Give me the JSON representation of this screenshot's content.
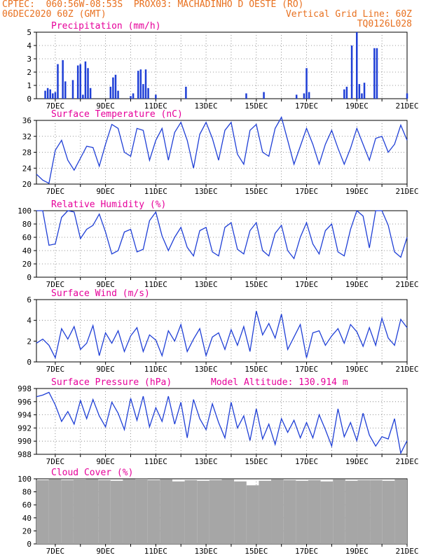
{
  "header": {
    "line1_left": "CPTEC:  060:56W-08:53S  PROX03: MACHADINHO D OESTE (RO)",
    "line2_left": "06DEC2020 60Z (GMT)",
    "line2_right": "Vertical Grid Line: 60Z",
    "line3_right": "TQ0126L028"
  },
  "colors": {
    "header": "#e8701f",
    "panel_title": "#e6009a",
    "series": "#1f3fd6",
    "cloud": "#a6a6a6"
  },
  "x_ticks": [
    "7DEC",
    "9DEC",
    "11DEC",
    "13DEC",
    "15DEC",
    "17DEC",
    "19DEC",
    "21DEC"
  ],
  "chart_data": [
    {
      "type": "bar",
      "title": "Precipitation (mm/h)",
      "ylim": [
        0,
        5
      ],
      "yticks": [
        "0",
        "1",
        "2",
        "3",
        "4",
        "5"
      ],
      "x_ticks": [
        "7DEC",
        "9DEC",
        "11DEC",
        "13DEC",
        "15DEC",
        "17DEC",
        "19DEC",
        "21DEC"
      ],
      "x": [
        6.6,
        6.7,
        6.8,
        6.9,
        7.0,
        7.1,
        7.3,
        7.4,
        7.7,
        7.9,
        8.0,
        8.1,
        8.2,
        8.3,
        8.4,
        9.2,
        9.3,
        9.4,
        9.5,
        10.0,
        10.1,
        10.3,
        10.4,
        10.5,
        10.6,
        10.7,
        11.0,
        12.2,
        14.6,
        15.3,
        16.6,
        16.9,
        17.0,
        17.1,
        18.5,
        18.6,
        18.8,
        19.0,
        19.1,
        19.2,
        19.3,
        19.7,
        19.8,
        21.0
      ],
      "values": [
        0.6,
        0.8,
        0.7,
        0.4,
        0.5,
        2.6,
        2.9,
        1.3,
        1.4,
        2.5,
        2.6,
        0.3,
        2.8,
        2.3,
        0.8,
        0.9,
        1.6,
        1.8,
        0.6,
        0.2,
        0.4,
        2.1,
        2.2,
        1.1,
        2.2,
        0.8,
        0.3,
        0.9,
        0.4,
        0.5,
        0.3,
        0.4,
        2.3,
        0.5,
        0.7,
        0.9,
        4.0,
        5.0,
        1.1,
        0.4,
        1.2,
        3.8,
        3.8,
        0.4
      ]
    },
    {
      "type": "line",
      "title": "Surface Temperature (nC)",
      "ylim": [
        20,
        36
      ],
      "yticks": [
        "20",
        "24",
        "28",
        "32",
        "36"
      ],
      "x_ticks": [
        "7DEC",
        "9DEC",
        "11DEC",
        "13DEC",
        "15DEC",
        "17DEC",
        "19DEC",
        "21DEC"
      ],
      "x": [
        6.25,
        6.5,
        6.75,
        7.0,
        7.25,
        7.5,
        7.75,
        8.0,
        8.25,
        8.5,
        8.75,
        9.0,
        9.25,
        9.5,
        9.75,
        10.0,
        10.25,
        10.5,
        10.75,
        11.0,
        11.25,
        11.5,
        11.75,
        12.0,
        12.25,
        12.5,
        12.75,
        13.0,
        13.25,
        13.5,
        13.75,
        14.0,
        14.25,
        14.5,
        14.75,
        15.0,
        15.25,
        15.5,
        15.75,
        16.0,
        16.25,
        16.5,
        16.75,
        17.0,
        17.25,
        17.5,
        17.75,
        18.0,
        18.25,
        18.5,
        18.75,
        19.0,
        19.25,
        19.5,
        19.75,
        20.0,
        20.25,
        20.5,
        20.75,
        21.0
      ],
      "values": [
        22.5,
        21.0,
        20.2,
        28.5,
        31.0,
        26.0,
        23.5,
        26.5,
        29.5,
        29.2,
        24.5,
        30.0,
        35.0,
        34.0,
        28.0,
        27.0,
        34.0,
        33.5,
        26.0,
        31.0,
        34.0,
        26.0,
        33.0,
        35.5,
        31.0,
        24.0,
        32.5,
        35.5,
        31.5,
        26.0,
        33.5,
        35.5,
        27.5,
        25.0,
        33.5,
        35.0,
        28.0,
        27.0,
        34.0,
        36.8,
        31.0,
        25.0,
        29.5,
        34.0,
        30.0,
        25.0,
        30.0,
        33.5,
        29.0,
        25.0,
        29.0,
        34.0,
        30.0,
        26.0,
        31.5,
        32.0,
        28.0,
        30.0,
        34.8,
        31.0
      ]
    },
    {
      "type": "line",
      "title": "Relative Humidity (%)",
      "ylim": [
        0,
        100
      ],
      "yticks": [
        "0",
        "20",
        "40",
        "60",
        "80",
        "100"
      ],
      "x_ticks": [
        "7DEC",
        "9DEC",
        "11DEC",
        "13DEC",
        "15DEC",
        "17DEC",
        "19DEC",
        "21DEC"
      ],
      "x": [
        6.25,
        6.5,
        6.75,
        7.0,
        7.25,
        7.5,
        7.75,
        8.0,
        8.25,
        8.5,
        8.75,
        9.0,
        9.25,
        9.5,
        9.75,
        10.0,
        10.25,
        10.5,
        10.75,
        11.0,
        11.25,
        11.5,
        11.75,
        12.0,
        12.25,
        12.5,
        12.75,
        13.0,
        13.25,
        13.5,
        13.75,
        14.0,
        14.25,
        14.5,
        14.75,
        15.0,
        15.25,
        15.5,
        15.75,
        16.0,
        16.25,
        16.5,
        16.75,
        17.0,
        17.25,
        17.5,
        17.75,
        18.0,
        18.25,
        18.5,
        18.75,
        19.0,
        19.25,
        19.5,
        19.75,
        20.0,
        20.25,
        20.5,
        20.75,
        21.0
      ],
      "values": [
        100,
        100,
        48,
        50,
        90,
        100,
        98,
        58,
        72,
        78,
        95,
        68,
        35,
        40,
        68,
        72,
        38,
        42,
        85,
        98,
        62,
        40,
        60,
        75,
        45,
        32,
        70,
        75,
        38,
        32,
        75,
        82,
        42,
        35,
        70,
        82,
        40,
        32,
        66,
        78,
        40,
        28,
        60,
        82,
        50,
        35,
        70,
        80,
        38,
        32,
        72,
        100,
        92,
        44,
        100,
        100,
        78,
        38,
        30,
        60
      ]
    },
    {
      "type": "line",
      "title": "Surface Wind (m/s)",
      "ylim": [
        0,
        6
      ],
      "yticks": [
        "0",
        "2",
        "4",
        "6"
      ],
      "x_ticks": [
        "7DEC",
        "9DEC",
        "11DEC",
        "13DEC",
        "15DEC",
        "17DEC",
        "19DEC",
        "21DEC"
      ],
      "x": [
        6.25,
        6.5,
        6.75,
        7.0,
        7.25,
        7.5,
        7.75,
        8.0,
        8.25,
        8.5,
        8.75,
        9.0,
        9.25,
        9.5,
        9.75,
        10.0,
        10.25,
        10.5,
        10.75,
        11.0,
        11.25,
        11.5,
        11.75,
        12.0,
        12.25,
        12.5,
        12.75,
        13.0,
        13.25,
        13.5,
        13.75,
        14.0,
        14.25,
        14.5,
        14.75,
        15.0,
        15.25,
        15.5,
        15.75,
        16.0,
        16.25,
        16.5,
        16.75,
        17.0,
        17.25,
        17.5,
        17.75,
        18.0,
        18.25,
        18.5,
        18.75,
        19.0,
        19.25,
        19.5,
        19.75,
        20.0,
        20.25,
        20.5,
        20.75,
        21.0
      ],
      "values": [
        1.8,
        2.2,
        1.6,
        0.4,
        3.2,
        2.2,
        3.4,
        1.2,
        1.8,
        3.5,
        0.6,
        2.8,
        1.8,
        3.0,
        1.0,
        2.5,
        3.3,
        1.0,
        2.6,
        2.1,
        0.6,
        3.0,
        2.0,
        3.6,
        1.0,
        2.2,
        3.2,
        0.6,
        2.4,
        2.8,
        1.2,
        3.1,
        1.6,
        3.4,
        1.0,
        4.9,
        2.6,
        3.7,
        2.3,
        4.6,
        1.2,
        2.4,
        3.6,
        0.4,
        2.8,
        3.0,
        1.6,
        2.5,
        3.2,
        1.8,
        3.6,
        2.9,
        1.5,
        3.3,
        1.6,
        4.2,
        2.3,
        1.6,
        4.1,
        3.3
      ]
    },
    {
      "type": "line",
      "title": "Surface Pressure (hPa)",
      "annotation": "Model Altitude: 130.914 m",
      "ylim": [
        987,
        999
      ],
      "yticks": [
        "988",
        "990",
        "992",
        "994",
        "996",
        "998"
      ],
      "x_ticks": [
        "7DEC",
        "9DEC",
        "11DEC",
        "13DEC",
        "15DEC",
        "17DEC",
        "19DEC",
        "21DEC"
      ],
      "x": [
        6.25,
        6.5,
        6.75,
        7.0,
        7.25,
        7.5,
        7.75,
        8.0,
        8.25,
        8.5,
        8.75,
        9.0,
        9.25,
        9.5,
        9.75,
        10.0,
        10.25,
        10.5,
        10.75,
        11.0,
        11.25,
        11.5,
        11.75,
        12.0,
        12.25,
        12.5,
        12.75,
        13.0,
        13.25,
        13.5,
        13.75,
        14.0,
        14.25,
        14.5,
        14.75,
        15.0,
        15.25,
        15.5,
        15.75,
        16.0,
        16.25,
        16.5,
        16.75,
        17.0,
        17.25,
        17.5,
        17.75,
        18.0,
        18.25,
        18.5,
        18.75,
        19.0,
        19.25,
        19.5,
        19.75,
        20.0,
        20.25,
        20.5,
        20.75,
        21.0
      ],
      "values": [
        997.5,
        997.8,
        998.3,
        996.0,
        993.0,
        994.8,
        992.5,
        996.8,
        993.5,
        997.0,
        994.0,
        992.0,
        996.5,
        994.5,
        991.5,
        997.2,
        993.2,
        997.6,
        992.0,
        995.5,
        993.0,
        997.6,
        992.5,
        996.5,
        990.0,
        997.0,
        993.5,
        991.5,
        996.2,
        992.8,
        990.0,
        996.5,
        991.8,
        994.0,
        989.5,
        995.3,
        989.8,
        992.5,
        988.8,
        993.5,
        991.0,
        993.2,
        990.0,
        992.8,
        990.0,
        994.2,
        991.5,
        988.5,
        995.3,
        990.2,
        992.8,
        989.5,
        994.5,
        990.5,
        988.5,
        990.2,
        989.8,
        993.5,
        987.2,
        989.5
      ]
    },
    {
      "type": "bar",
      "title": "Cloud Cover (%)",
      "ylim": [
        0,
        100
      ],
      "yticks": [
        "0",
        "20",
        "40",
        "60",
        "80",
        "100"
      ],
      "x_ticks": [
        "7DEC",
        "9DEC",
        "11DEC",
        "13DEC",
        "15DEC",
        "17DEC",
        "19DEC",
        "21DEC"
      ],
      "x": [
        6.5,
        7.0,
        7.5,
        8.0,
        8.5,
        9.0,
        9.5,
        10.0,
        10.5,
        11.0,
        11.5,
        12.0,
        12.5,
        13.0,
        13.5,
        14.0,
        14.5,
        15.0,
        15.5,
        16.0,
        16.5,
        17.0,
        17.5,
        18.0,
        18.5,
        19.0,
        19.5,
        20.0,
        20.5,
        21.0
      ],
      "values": [
        98,
        99,
        98,
        100,
        99,
        98,
        97,
        99,
        100,
        98,
        99,
        96,
        98,
        97,
        98,
        99,
        96,
        90,
        97,
        99,
        98,
        97,
        98,
        96,
        99,
        97,
        98,
        98,
        97,
        99
      ]
    }
  ]
}
